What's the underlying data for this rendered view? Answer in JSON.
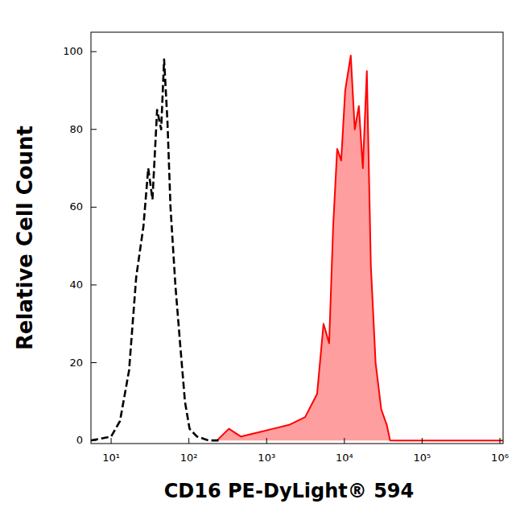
{
  "chart_data": {
    "type": "line",
    "x_label": "CD16 PE-DyLight® 594",
    "y_label": "Relative Cell Count",
    "log": "x",
    "grid": false,
    "xlim": [
      5.5,
      1100000
    ],
    "ylim": [
      -0.8,
      105
    ],
    "xticks": [
      {
        "value": 10,
        "label": "10¹"
      },
      {
        "value": 100,
        "label": "10²"
      },
      {
        "value": 1000,
        "label": "10³"
      },
      {
        "value": 10000,
        "label": "10⁴"
      },
      {
        "value": 100000,
        "label": "10⁵"
      },
      {
        "value": 1000000,
        "label": "10⁶"
      }
    ],
    "yticks": [
      0,
      20,
      40,
      60,
      80,
      100
    ],
    "series": [
      {
        "type": "line",
        "color": "#000000",
        "line_style": "dashed",
        "x": [
          5.5,
          10,
          13,
          17,
          21,
          26,
          30,
          34,
          39,
          44,
          48,
          53,
          58,
          67,
          77,
          89,
          102,
          127,
          180,
          260
        ],
        "values": [
          0,
          1,
          5,
          18,
          42,
          55,
          70,
          62,
          85,
          80,
          98,
          82,
          60,
          40,
          25,
          10,
          3,
          1,
          0,
          0
        ]
      },
      {
        "type": "area",
        "color": "#ff0000",
        "line_style": "solid",
        "x": [
          230,
          327,
          468,
          752,
          1208,
          1945,
          3126,
          4460,
          5390,
          6370,
          7170,
          8080,
          9100,
          10240,
          12080,
          13600,
          15350,
          17270,
          19450,
          21900,
          25200,
          29800,
          35100,
          38700,
          54000,
          1100000
        ],
        "values": [
          0,
          3,
          1,
          2,
          3,
          4,
          6,
          12,
          30,
          25,
          55,
          75,
          72,
          90,
          99,
          80,
          86,
          70,
          95,
          45,
          20,
          8,
          4,
          0,
          0,
          0
        ]
      }
    ]
  }
}
